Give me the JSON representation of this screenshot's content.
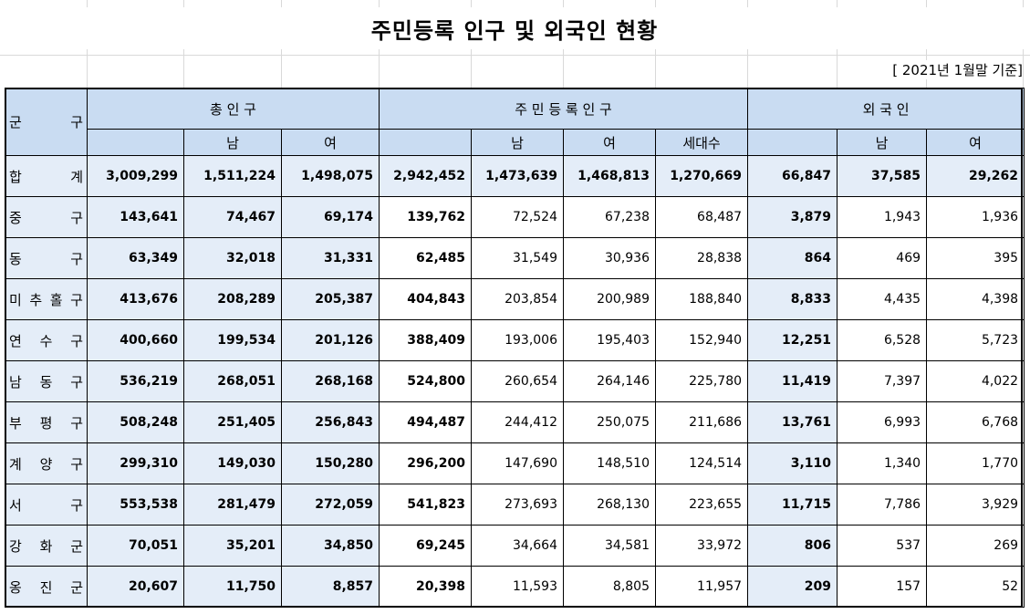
{
  "title": "주민등록 인구 및 외국인 현황",
  "date_note": "[ 2021년 1월말 기준]",
  "headers": {
    "region": [
      "군",
      "구"
    ],
    "total": "총 인 구",
    "registered": "주 민 등 록 인 구",
    "foreign": "외 국 인",
    "male": "남",
    "female": "여",
    "households": "세대수"
  },
  "rows": [
    {
      "name": [
        "합",
        "계"
      ],
      "total": "3,009,299",
      "total_m": "1,511,224",
      "total_f": "1,498,075",
      "reg": "2,942,452",
      "reg_m": "1,473,639",
      "reg_f": "1,468,813",
      "hh": "1,270,669",
      "for": "66,847",
      "for_m": "37,585",
      "for_f": "29,262"
    },
    {
      "name": [
        "중",
        "구"
      ],
      "total": "143,641",
      "total_m": "74,467",
      "total_f": "69,174",
      "reg": "139,762",
      "reg_m": "72,524",
      "reg_f": "67,238",
      "hh": "68,487",
      "for": "3,879",
      "for_m": "1,943",
      "for_f": "1,936"
    },
    {
      "name": [
        "동",
        "구"
      ],
      "total": "63,349",
      "total_m": "32,018",
      "total_f": "31,331",
      "reg": "62,485",
      "reg_m": "31,549",
      "reg_f": "30,936",
      "hh": "28,838",
      "for": "864",
      "for_m": "469",
      "for_f": "395"
    },
    {
      "name": [
        "미",
        "추",
        "홀",
        "구"
      ],
      "total": "413,676",
      "total_m": "208,289",
      "total_f": "205,387",
      "reg": "404,843",
      "reg_m": "203,854",
      "reg_f": "200,989",
      "hh": "188,840",
      "for": "8,833",
      "for_m": "4,435",
      "for_f": "4,398"
    },
    {
      "name": [
        "연",
        "수",
        "구"
      ],
      "total": "400,660",
      "total_m": "199,534",
      "total_f": "201,126",
      "reg": "388,409",
      "reg_m": "193,006",
      "reg_f": "195,403",
      "hh": "152,940",
      "for": "12,251",
      "for_m": "6,528",
      "for_f": "5,723"
    },
    {
      "name": [
        "남",
        "동",
        "구"
      ],
      "total": "536,219",
      "total_m": "268,051",
      "total_f": "268,168",
      "reg": "524,800",
      "reg_m": "260,654",
      "reg_f": "264,146",
      "hh": "225,780",
      "for": "11,419",
      "for_m": "7,397",
      "for_f": "4,022"
    },
    {
      "name": [
        "부",
        "평",
        "구"
      ],
      "total": "508,248",
      "total_m": "251,405",
      "total_f": "256,843",
      "reg": "494,487",
      "reg_m": "244,412",
      "reg_f": "250,075",
      "hh": "211,686",
      "for": "13,761",
      "for_m": "6,993",
      "for_f": "6,768"
    },
    {
      "name": [
        "계",
        "양",
        "구"
      ],
      "total": "299,310",
      "total_m": "149,030",
      "total_f": "150,280",
      "reg": "296,200",
      "reg_m": "147,690",
      "reg_f": "148,510",
      "hh": "124,514",
      "for": "3,110",
      "for_m": "1,340",
      "for_f": "1,770"
    },
    {
      "name": [
        "서",
        "구"
      ],
      "total": "553,538",
      "total_m": "281,479",
      "total_f": "272,059",
      "reg": "541,823",
      "reg_m": "273,693",
      "reg_f": "268,130",
      "hh": "223,655",
      "for": "11,715",
      "for_m": "7,786",
      "for_f": "3,929"
    },
    {
      "name": [
        "강",
        "화",
        "군"
      ],
      "total": "70,051",
      "total_m": "35,201",
      "total_f": "34,850",
      "reg": "69,245",
      "reg_m": "34,664",
      "reg_f": "34,581",
      "hh": "33,972",
      "for": "806",
      "for_m": "537",
      "for_f": "269"
    },
    {
      "name": [
        "옹",
        "진",
        "군"
      ],
      "total": "20,607",
      "total_m": "11,750",
      "total_f": "8,857",
      "reg": "20,398",
      "reg_m": "11,593",
      "reg_f": "8,805",
      "hh": "11,957",
      "for": "209",
      "for_m": "157",
      "for_f": "52"
    }
  ]
}
